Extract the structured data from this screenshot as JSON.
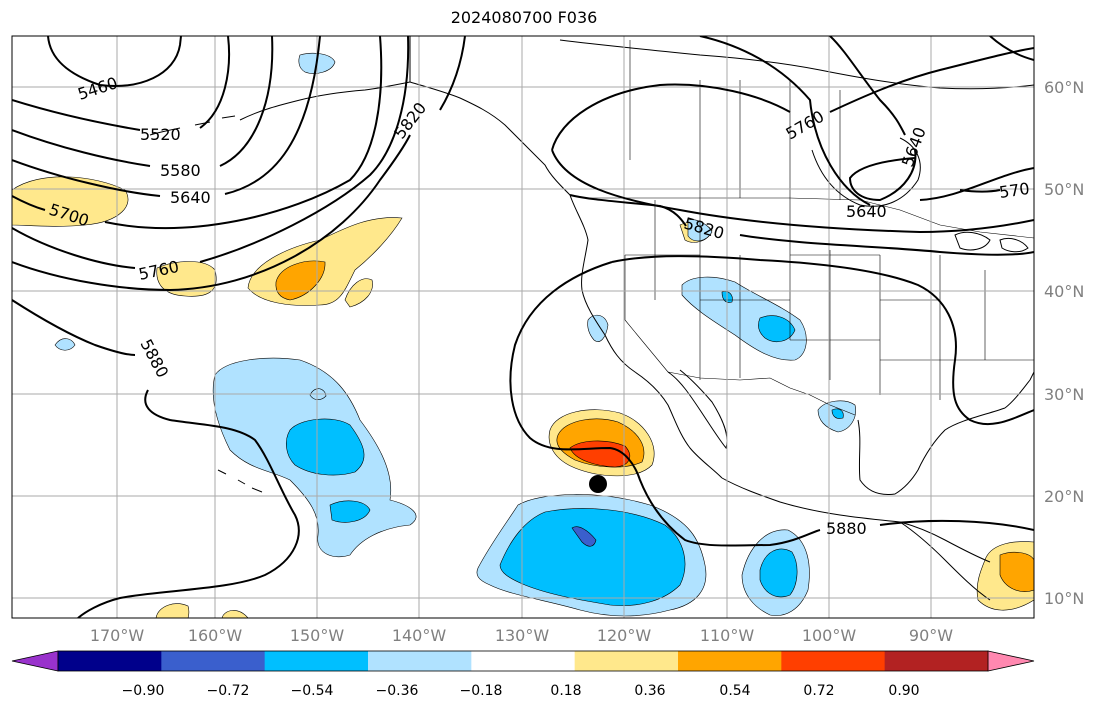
{
  "title": "2024080700 F036",
  "longitude_labels": [
    "170°W",
    "160°W",
    "150°W",
    "140°W",
    "130°W",
    "120°W",
    "110°W",
    "100°W",
    "90°W"
  ],
  "latitude_labels": [
    "60°N",
    "50°N",
    "40°N",
    "30°N",
    "20°N",
    "10°N"
  ],
  "contour_labels": [
    "5460",
    "5520",
    "5580",
    "5640",
    "5700",
    "5760",
    "5820",
    "5880",
    "5820",
    "5760",
    "5640",
    "5640",
    "570",
    "5880"
  ],
  "colorbar": {
    "tick_labels": [
      "−0.90",
      "−0.72",
      "−0.54",
      "−0.36",
      "−0.18",
      "0.18",
      "0.36",
      "0.54",
      "0.72",
      "0.90"
    ],
    "colors": [
      "#9932cc",
      "#00008b",
      "#3a5fcd",
      "#00bfff",
      "#b0e2ff",
      "#ffffff",
      "#ffe88c",
      "#ffa500",
      "#ff3f00",
      "#b22222",
      "#ff88b0"
    ]
  },
  "colors": {
    "ocean": "#ffffff",
    "gridline": "#aaaaaa",
    "contour": "#000000",
    "tick_label": "#808080"
  },
  "markers": [
    {
      "name": "storm-center-marker",
      "symbol": "filled-circle",
      "color": "#000000"
    }
  ]
}
